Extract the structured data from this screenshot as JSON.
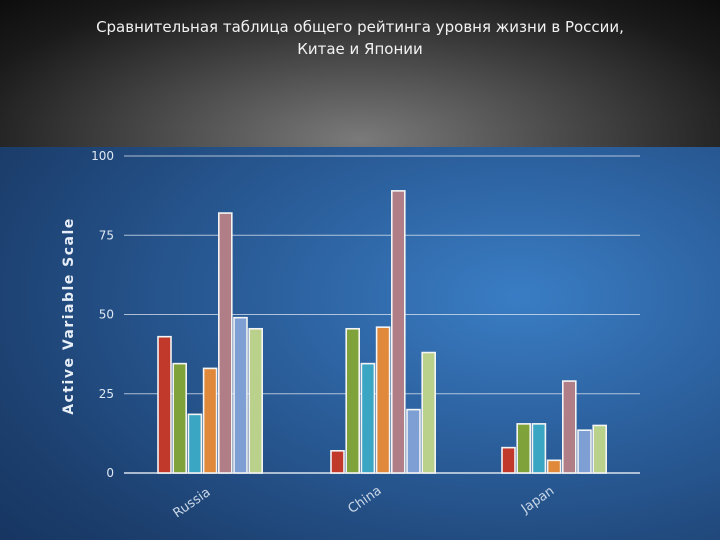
{
  "chart_data": {
    "type": "bar",
    "title": "Сравнительная таблица общего рейтинга уровня жизни в России, Китае и Японии",
    "ylabel": "Active Variable Scale",
    "xlabel": "",
    "ylim": [
      0,
      100
    ],
    "yticks": [
      0,
      25,
      50,
      75,
      100
    ],
    "grid": true,
    "categories": [
      "Russia",
      "China",
      "Japan"
    ],
    "series": [
      {
        "color": "#c0392b",
        "values": [
          43,
          7,
          8
        ]
      },
      {
        "color": "#7fa33a",
        "values": [
          34.5,
          45.5,
          15.5
        ]
      },
      {
        "color": "#3aa6c4",
        "values": [
          18.5,
          34.5,
          15.5
        ]
      },
      {
        "color": "#e0893a",
        "values": [
          33,
          46,
          4
        ]
      },
      {
        "color": "#b07e86",
        "values": [
          82,
          89,
          29
        ]
      },
      {
        "color": "#7e9fd4",
        "values": [
          49,
          20,
          13.5
        ]
      },
      {
        "color": "#b9d18a",
        "values": [
          45.5,
          38,
          15
        ]
      }
    ]
  }
}
